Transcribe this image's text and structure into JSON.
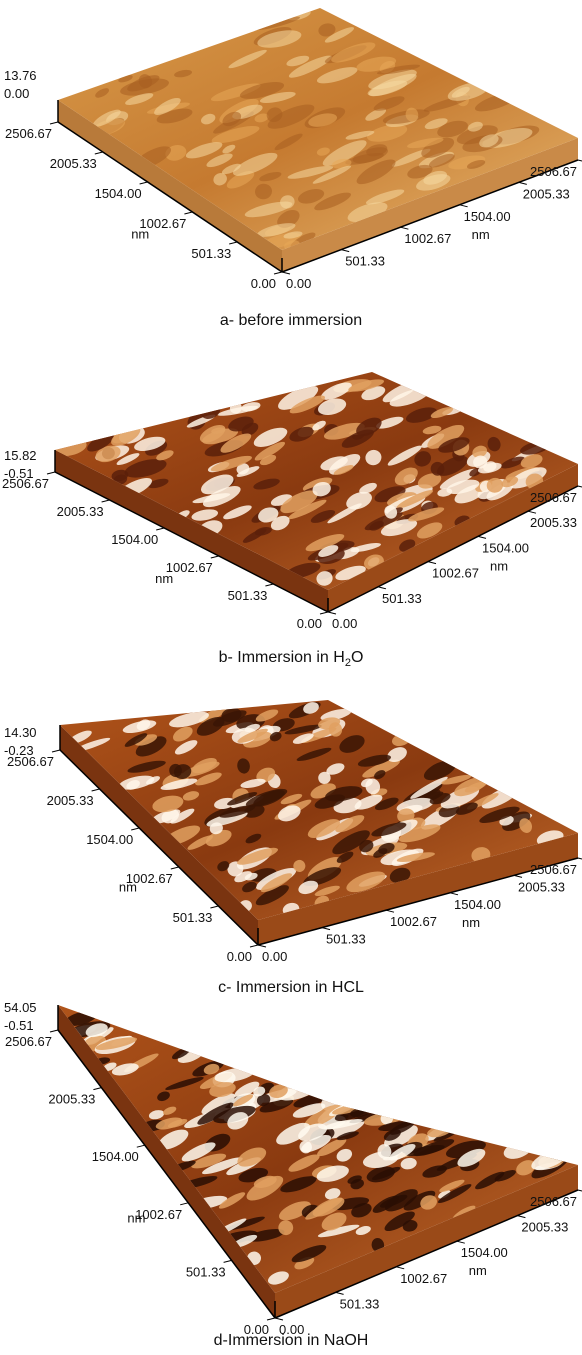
{
  "panels": [
    {
      "z_max": "13.76",
      "z_min": "0.00",
      "left_ticks": [
        "2506.67",
        "2005.33",
        "1504.00",
        "1002.67",
        "501.33",
        "0.00"
      ],
      "left_unit": "nm",
      "right_ticks": [
        "0.00",
        "501.33",
        "1002.67",
        "1504.00",
        "2005.33",
        "2506.67"
      ],
      "right_unit": "nm",
      "caption": [
        "a- before immersion"
      ]
    },
    {
      "z_max": "15.82",
      "z_min": "-0.51",
      "left_ticks": [
        "2506.67",
        "2005.33",
        "1504.00",
        "1002.67",
        "501.33",
        "0.00"
      ],
      "left_unit": "nm",
      "right_ticks": [
        "0.00",
        "501.33",
        "1002.67",
        "1504.00",
        "2005.33",
        "2506.67"
      ],
      "right_unit": "nm",
      "caption": [
        "b-  Immersion in H",
        "2",
        "O"
      ]
    },
    {
      "z_max": "14.30",
      "z_min": "-0.23",
      "left_ticks": [
        "2506.67",
        "2005.33",
        "1504.00",
        "1002.67",
        "501.33",
        "0.00"
      ],
      "left_unit": "nm",
      "right_ticks": [
        "0.00",
        "501.33",
        "1002.67",
        "1504.00",
        "2005.33",
        "2506.67"
      ],
      "right_unit": "nm",
      "caption": [
        "c- Immersion in HCL"
      ]
    },
    {
      "z_max": "54.05",
      "z_min": "-0.51",
      "left_ticks": [
        "2506.67",
        "2005.33",
        "1504.00",
        "1002.67",
        "501.33",
        "0.00"
      ],
      "left_unit": "nm",
      "right_ticks": [
        "0.00",
        "501.33",
        "1002.67",
        "1504.00",
        "2005.33",
        "2506.67"
      ],
      "right_unit": "nm",
      "caption": [
        "d-Immersion in NaOH"
      ]
    }
  ]
}
